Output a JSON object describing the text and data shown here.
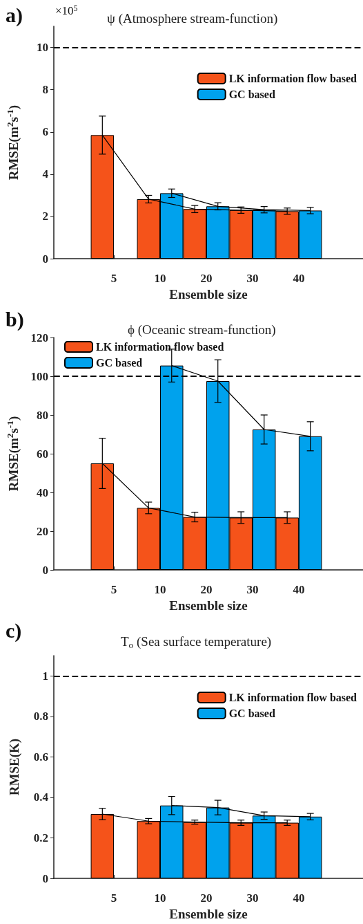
{
  "chart_data": [
    {
      "type": "bar",
      "title": "ψ (Atmosphere stream-function)",
      "xlabel": "Ensemble size",
      "ylabel": "RMSE(m$^{2}$s$^{-1}$)",
      "annotations": [
        "a)",
        "×10$^{5}$"
      ],
      "categories": [
        "5",
        "10",
        "20",
        "30",
        "40"
      ],
      "ylim": [
        0,
        11
      ],
      "yticks": [
        0,
        2,
        4,
        6,
        8,
        10
      ],
      "grid": false,
      "legend": "top right",
      "ref_lines": [
        {
          "axis": "y",
          "value": 10,
          "color": "#000000",
          "line_style": "dashed"
        }
      ],
      "series": [
        {
          "name": "LK information flow based",
          "color": "#f5531a",
          "values": [
            5.85,
            2.82,
            2.35,
            2.3,
            2.25
          ],
          "errors": [
            0.9,
            0.18,
            0.17,
            0.15,
            0.15
          ]
        },
        {
          "name": "GC based",
          "color": "#00a2ed",
          "values": [
            null,
            3.1,
            2.48,
            2.32,
            2.28
          ],
          "errors": [
            null,
            0.2,
            0.17,
            0.15,
            0.15
          ]
        },
        {
          "type": "line",
          "color": "#000000",
          "values": [
            5.85,
            2.82,
            2.35,
            2.3,
            2.25
          ]
        },
        {
          "type": "line",
          "color": "#000000",
          "values": [
            null,
            3.1,
            2.48,
            2.32,
            2.28
          ]
        }
      ]
    },
    {
      "type": "bar",
      "title": "ϕ (Oceanic stream-function)",
      "xlabel": "Ensemble size",
      "ylabel": "RMSE(m$^{2}$s$^{-1}$)",
      "annotations": [
        "b)"
      ],
      "categories": [
        "5",
        "10",
        "20",
        "30",
        "40"
      ],
      "ylim": [
        0,
        120
      ],
      "yticks": [
        0,
        20,
        40,
        60,
        80,
        100,
        120
      ],
      "grid": false,
      "legend": "top left",
      "ref_lines": [
        {
          "axis": "y",
          "value": 100,
          "color": "#000000",
          "line_style": "dashed"
        }
      ],
      "series": [
        {
          "name": "LK information flow based",
          "color": "#f5531a",
          "values": [
            55,
            32,
            27.3,
            27,
            27
          ],
          "errors": [
            13,
            3,
            2.5,
            3,
            3
          ]
        },
        {
          "name": "GC based",
          "color": "#00a2ed",
          "values": [
            null,
            105.5,
            97.5,
            72.5,
            69
          ],
          "errors": [
            null,
            8.5,
            11,
            7.5,
            7.5
          ]
        },
        {
          "type": "line",
          "color": "#000000",
          "values": [
            55,
            32,
            27.3,
            27,
            27
          ]
        },
        {
          "type": "line",
          "color": "#000000",
          "values": [
            null,
            105.5,
            97.5,
            72.5,
            69
          ]
        }
      ]
    },
    {
      "type": "bar",
      "title": "T$_{o}$ (Sea surface temperature)",
      "xlabel": "Ensemble size",
      "ylabel": "RMSE(K)",
      "annotations": [
        "c)"
      ],
      "categories": [
        "5",
        "10",
        "20",
        "30",
        "40"
      ],
      "ylim": [
        0,
        1.1
      ],
      "yticks": [
        0,
        0.2,
        0.4,
        0.6,
        0.8,
        1
      ],
      "grid": false,
      "legend": "top right",
      "ref_lines": [
        {
          "axis": "y",
          "value": 1,
          "color": "#000000",
          "line_style": "dashed"
        }
      ],
      "series": [
        {
          "name": "LK information flow based",
          "color": "#f5531a",
          "values": [
            0.318,
            0.283,
            0.278,
            0.275,
            0.275
          ],
          "errors": [
            0.028,
            0.013,
            0.01,
            0.013,
            0.013
          ]
        },
        {
          "name": "GC based",
          "color": "#00a2ed",
          "values": [
            null,
            0.36,
            0.35,
            0.31,
            0.305
          ],
          "errors": [
            null,
            0.045,
            0.036,
            0.018,
            0.016
          ]
        },
        {
          "type": "line",
          "color": "#000000",
          "values": [
            0.318,
            0.283,
            0.278,
            0.275,
            0.275
          ]
        },
        {
          "type": "line",
          "color": "#000000",
          "values": [
            null,
            0.36,
            0.35,
            0.31,
            0.305
          ]
        }
      ]
    }
  ]
}
